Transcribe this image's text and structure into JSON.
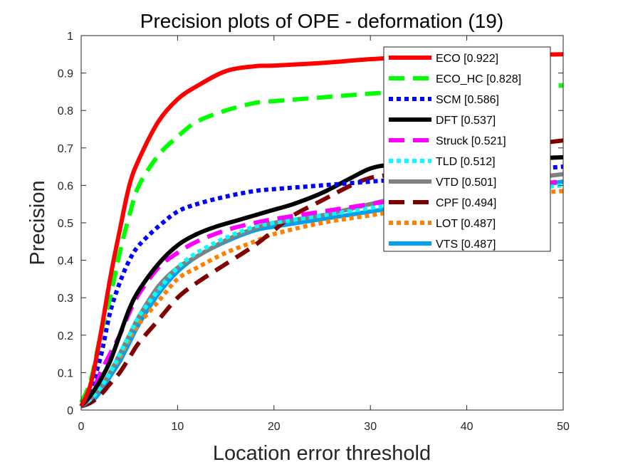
{
  "chart_data": {
    "type": "line",
    "title": "Precision plots of OPE - deformation (19)",
    "xlabel": "Location error threshold",
    "ylabel": "Precision",
    "xlim": [
      0,
      50
    ],
    "ylim": [
      0,
      1
    ],
    "xticks": [
      0,
      10,
      20,
      30,
      40,
      50
    ],
    "yticks": [
      0,
      0.1,
      0.2,
      0.3,
      0.4,
      0.5,
      0.6,
      0.7,
      0.8,
      0.9,
      1
    ],
    "x_tick_labels": [
      "0",
      "10",
      "20",
      "30",
      "40",
      "50"
    ],
    "y_tick_labels": [
      "0",
      "0.1",
      "0.2",
      "0.3",
      "0.4",
      "0.5",
      "0.6",
      "0.7",
      "0.8",
      "0.9",
      "1"
    ],
    "legend_position": "top-right",
    "grid": false,
    "series": [
      {
        "name": "ECO [0.922]",
        "color": "#ff0000",
        "dash": "solid",
        "x": [
          0,
          1,
          2,
          3,
          4,
          5,
          6,
          8,
          10,
          12,
          15,
          18,
          20,
          25,
          30,
          35,
          40,
          45,
          50
        ],
        "y": [
          0.01,
          0.07,
          0.2,
          0.35,
          0.48,
          0.6,
          0.67,
          0.77,
          0.83,
          0.865,
          0.905,
          0.918,
          0.92,
          0.927,
          0.937,
          0.943,
          0.946,
          0.948,
          0.95
        ]
      },
      {
        "name": "ECO_HC [0.828]",
        "color": "#00ff00",
        "dash": "longdash",
        "x": [
          0,
          1,
          2,
          3,
          4,
          5,
          6,
          8,
          10,
          12,
          15,
          18,
          20,
          25,
          30,
          35,
          40,
          45,
          50
        ],
        "y": [
          0.02,
          0.08,
          0.2,
          0.3,
          0.42,
          0.52,
          0.6,
          0.68,
          0.73,
          0.77,
          0.8,
          0.82,
          0.825,
          0.835,
          0.845,
          0.853,
          0.857,
          0.862,
          0.867
        ]
      },
      {
        "name": "SCM [0.586]",
        "color": "#0000ff",
        "dash": "dot",
        "x": [
          0,
          1,
          2,
          3,
          4,
          5,
          6,
          8,
          10,
          12,
          15,
          18,
          20,
          25,
          30,
          35,
          40,
          45,
          50
        ],
        "y": [
          0.01,
          0.06,
          0.14,
          0.26,
          0.34,
          0.4,
          0.44,
          0.49,
          0.53,
          0.55,
          0.57,
          0.585,
          0.59,
          0.6,
          0.61,
          0.62,
          0.63,
          0.64,
          0.65
        ]
      },
      {
        "name": "DFT [0.537]",
        "color": "#000000",
        "dash": "solid",
        "x": [
          0,
          1,
          2,
          3,
          4,
          5,
          6,
          8,
          10,
          12,
          14,
          16,
          18,
          20,
          22,
          25,
          28,
          30,
          32,
          35,
          40,
          45,
          50
        ],
        "y": [
          0.01,
          0.04,
          0.08,
          0.13,
          0.2,
          0.27,
          0.32,
          0.39,
          0.44,
          0.47,
          0.49,
          0.505,
          0.52,
          0.535,
          0.55,
          0.58,
          0.62,
          0.645,
          0.655,
          0.66,
          0.665,
          0.67,
          0.675
        ]
      },
      {
        "name": "Struck [0.521]",
        "color": "#ff00ff",
        "dash": "longdash",
        "x": [
          0,
          1,
          2,
          3,
          4,
          5,
          6,
          8,
          10,
          12,
          15,
          18,
          20,
          25,
          30,
          35,
          40,
          45,
          50
        ],
        "y": [
          0.01,
          0.04,
          0.1,
          0.15,
          0.2,
          0.26,
          0.31,
          0.38,
          0.42,
          0.45,
          0.48,
          0.5,
          0.51,
          0.53,
          0.55,
          0.57,
          0.59,
          0.6,
          0.61
        ]
      },
      {
        "name": "TLD [0.512]",
        "color": "#00ffff",
        "dash": "dot",
        "x": [
          0,
          1,
          2,
          3,
          4,
          5,
          6,
          8,
          10,
          12,
          15,
          18,
          20,
          25,
          30,
          35,
          40,
          45,
          50
        ],
        "y": [
          0.01,
          0.03,
          0.06,
          0.1,
          0.15,
          0.2,
          0.25,
          0.32,
          0.38,
          0.42,
          0.46,
          0.49,
          0.5,
          0.52,
          0.54,
          0.56,
          0.58,
          0.59,
          0.6
        ]
      },
      {
        "name": "VTD [0.501]",
        "color": "#808080",
        "dash": "solid",
        "x": [
          0,
          1,
          2,
          3,
          4,
          5,
          6,
          8,
          10,
          12,
          14,
          16,
          18,
          20,
          25,
          30,
          35,
          40,
          45,
          50
        ],
        "y": [
          0.01,
          0.03,
          0.06,
          0.1,
          0.15,
          0.2,
          0.25,
          0.33,
          0.38,
          0.41,
          0.44,
          0.465,
          0.485,
          0.5,
          0.52,
          0.55,
          0.58,
          0.6,
          0.615,
          0.63
        ]
      },
      {
        "name": "CPF [0.494]",
        "color": "#800000",
        "dash": "longdash",
        "x": [
          0,
          1,
          2,
          3,
          4,
          5,
          6,
          8,
          10,
          12,
          15,
          18,
          20,
          22,
          25,
          28,
          30,
          32,
          35,
          40,
          45,
          50
        ],
        "y": [
          0.01,
          0.02,
          0.04,
          0.07,
          0.1,
          0.14,
          0.18,
          0.24,
          0.3,
          0.34,
          0.39,
          0.44,
          0.48,
          0.52,
          0.56,
          0.6,
          0.62,
          0.63,
          0.66,
          0.69,
          0.705,
          0.72
        ]
      },
      {
        "name": "LOT [0.487]",
        "color": "#ff8000",
        "dash": "dot",
        "x": [
          0,
          1,
          2,
          3,
          4,
          5,
          6,
          8,
          10,
          12,
          15,
          18,
          20,
          25,
          30,
          35,
          40,
          45,
          50
        ],
        "y": [
          0.01,
          0.03,
          0.06,
          0.1,
          0.14,
          0.19,
          0.23,
          0.29,
          0.35,
          0.38,
          0.42,
          0.45,
          0.47,
          0.5,
          0.52,
          0.54,
          0.56,
          0.575,
          0.585
        ]
      },
      {
        "name": "VTS [0.487]",
        "color": "#00a0f0",
        "dash": "solid",
        "x": [
          0,
          1,
          2,
          3,
          4,
          5,
          6,
          8,
          10,
          12,
          15,
          18,
          20,
          25,
          30,
          35,
          40,
          45,
          50
        ],
        "y": [
          0.01,
          0.02,
          0.05,
          0.09,
          0.13,
          0.18,
          0.23,
          0.31,
          0.37,
          0.41,
          0.45,
          0.48,
          0.49,
          0.51,
          0.53,
          0.55,
          0.57,
          0.59,
          0.61
        ]
      }
    ]
  }
}
